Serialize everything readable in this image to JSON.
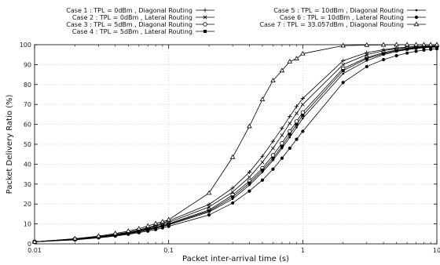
{
  "chart_data": {
    "type": "line",
    "title": "",
    "xlabel": "Packet inter-arrival time (s)",
    "ylabel": "Packet Delivery Ratio (%)",
    "xscale": "log",
    "xlim": [
      0.01,
      10
    ],
    "ylim": [
      0,
      100
    ],
    "xticks": [
      0.01,
      0.1,
      1,
      10
    ],
    "xtick_labels": [
      "0.01",
      "0.1",
      "1",
      "10"
    ],
    "yticks": [
      0,
      10,
      20,
      30,
      40,
      50,
      60,
      70,
      80,
      90,
      100
    ],
    "grid": true,
    "legend_position": "top",
    "series": [
      {
        "name": "Case 1 : TPL = 0dBm , Diagonal Routing",
        "marker": "plus",
        "color": "#000000",
        "x": [
          0.01,
          0.02,
          0.03,
          0.04,
          0.05,
          0.06,
          0.07,
          0.08,
          0.09,
          0.1,
          0.2,
          0.3,
          0.4,
          0.5,
          0.6,
          0.7,
          0.8,
          0.9,
          1,
          2,
          3,
          4,
          5,
          6,
          7,
          8,
          9,
          10
        ],
        "y": [
          1,
          2.5,
          3.6,
          4.8,
          5.9,
          7,
          8.1,
          9.3,
          10.4,
          11.5,
          19.8,
          28,
          36,
          44,
          51.5,
          58,
          64,
          69,
          73,
          92,
          96,
          97.5,
          98.3,
          98.8,
          99.1,
          99.3,
          99.4,
          99.5
        ]
      },
      {
        "name": "Case 2 : TPL = 0dBm , Lateral Routing",
        "marker": "x",
        "color": "#000000",
        "x": [
          0.01,
          0.02,
          0.03,
          0.04,
          0.05,
          0.06,
          0.07,
          0.08,
          0.09,
          0.1,
          0.2,
          0.3,
          0.4,
          0.5,
          0.6,
          0.7,
          0.8,
          0.9,
          1,
          2,
          3,
          4,
          5,
          6,
          7,
          8,
          9,
          10
        ],
        "y": [
          1,
          2.4,
          3.5,
          4.6,
          5.7,
          6.8,
          7.8,
          8.9,
          9.9,
          10.8,
          18.5,
          26,
          33.5,
          41,
          48,
          54.5,
          60.5,
          65.5,
          70,
          90,
          95,
          97,
          98,
          98.6,
          99,
          99.2,
          99.3,
          99.4
        ]
      },
      {
        "name": "Case 3 : TPL = 5dBm , Diagonal Routing",
        "marker": "open-circle",
        "color": "#000000",
        "x": [
          0.01,
          0.02,
          0.03,
          0.04,
          0.05,
          0.06,
          0.07,
          0.08,
          0.09,
          0.1,
          0.2,
          0.3,
          0.4,
          0.5,
          0.6,
          0.7,
          0.8,
          0.9,
          1,
          2,
          3,
          4,
          5,
          6,
          7,
          8,
          9,
          10
        ],
        "y": [
          1,
          2.3,
          3.4,
          4.4,
          5.4,
          6.4,
          7.4,
          8.3,
          9.2,
          10.1,
          17,
          24.5,
          31.5,
          38,
          44.5,
          50.5,
          56.5,
          61.5,
          66,
          88,
          93.5,
          96,
          97.3,
          98.1,
          98.6,
          98.9,
          99.1,
          99.2
        ]
      },
      {
        "name": "Case 4 : TPL = 5dBm , Lateral Routing",
        "marker": "filled-square",
        "color": "#000000",
        "x": [
          0.01,
          0.02,
          0.03,
          0.04,
          0.05,
          0.06,
          0.07,
          0.08,
          0.09,
          0.1,
          0.2,
          0.3,
          0.4,
          0.5,
          0.6,
          0.7,
          0.8,
          0.9,
          1,
          2,
          3,
          4,
          5,
          6,
          7,
          8,
          9,
          10
        ],
        "y": [
          1,
          2.2,
          3.3,
          4.3,
          5.3,
          6.2,
          7.2,
          8.1,
          9,
          9.8,
          16.5,
          23.5,
          30.5,
          37,
          43,
          49,
          55,
          60,
          64.5,
          87,
          93,
          95.5,
          97,
          97.8,
          98.4,
          98.7,
          98.9,
          99
        ]
      },
      {
        "name": "Case 5 : TPL = 10dBm , Diagonal Routing",
        "marker": "small-dot",
        "color": "#000000",
        "x": [
          0.01,
          0.02,
          0.03,
          0.04,
          0.05,
          0.06,
          0.07,
          0.08,
          0.09,
          0.1,
          0.2,
          0.3,
          0.4,
          0.5,
          0.6,
          0.7,
          0.8,
          0.9,
          1,
          2,
          3,
          4,
          5,
          6,
          7,
          8,
          9,
          10
        ],
        "y": [
          1,
          2.2,
          3.2,
          4.2,
          5.1,
          6,
          6.9,
          7.8,
          8.7,
          9.5,
          16,
          22.5,
          29.5,
          36,
          42,
          48,
          53.5,
          58.5,
          63,
          85.5,
          92,
          95,
          96.6,
          97.5,
          98.1,
          98.5,
          98.7,
          98.8
        ]
      },
      {
        "name": "Case 6 : TPL = 10dBm , Lateral Routing",
        "marker": "filled-circle",
        "color": "#000000",
        "x": [
          0.01,
          0.02,
          0.03,
          0.04,
          0.05,
          0.06,
          0.07,
          0.08,
          0.09,
          0.1,
          0.2,
          0.3,
          0.4,
          0.5,
          0.6,
          0.7,
          0.8,
          0.9,
          1,
          2,
          3,
          4,
          5,
          6,
          7,
          8,
          9,
          10
        ],
        "y": [
          1,
          2,
          3,
          3.9,
          4.8,
          5.6,
          6.4,
          7.2,
          8,
          8.8,
          14.5,
          20.5,
          26.5,
          32,
          37.5,
          43,
          48,
          52.5,
          56.5,
          81,
          89,
          92.5,
          94.5,
          95.8,
          96.7,
          97.3,
          97.7,
          98
        ]
      },
      {
        "name": "Case 7 : TPL = 33.057dBm , Diagonal Routing",
        "marker": "open-triangle",
        "color": "#000000",
        "x": [
          0.01,
          0.02,
          0.03,
          0.04,
          0.05,
          0.06,
          0.07,
          0.08,
          0.09,
          0.1,
          0.2,
          0.3,
          0.4,
          0.5,
          0.6,
          0.7,
          0.8,
          0.9,
          1,
          2,
          3,
          4,
          5,
          6,
          7,
          8,
          9,
          10
        ],
        "y": [
          1,
          2.6,
          3.9,
          5.2,
          6.4,
          7.6,
          8.9,
          10.2,
          11.1,
          12.1,
          25.5,
          43.5,
          59,
          72.5,
          82,
          87,
          91.5,
          93,
          95.5,
          99.5,
          99.8,
          99.9,
          100,
          100,
          100,
          100,
          100,
          100
        ]
      }
    ]
  }
}
